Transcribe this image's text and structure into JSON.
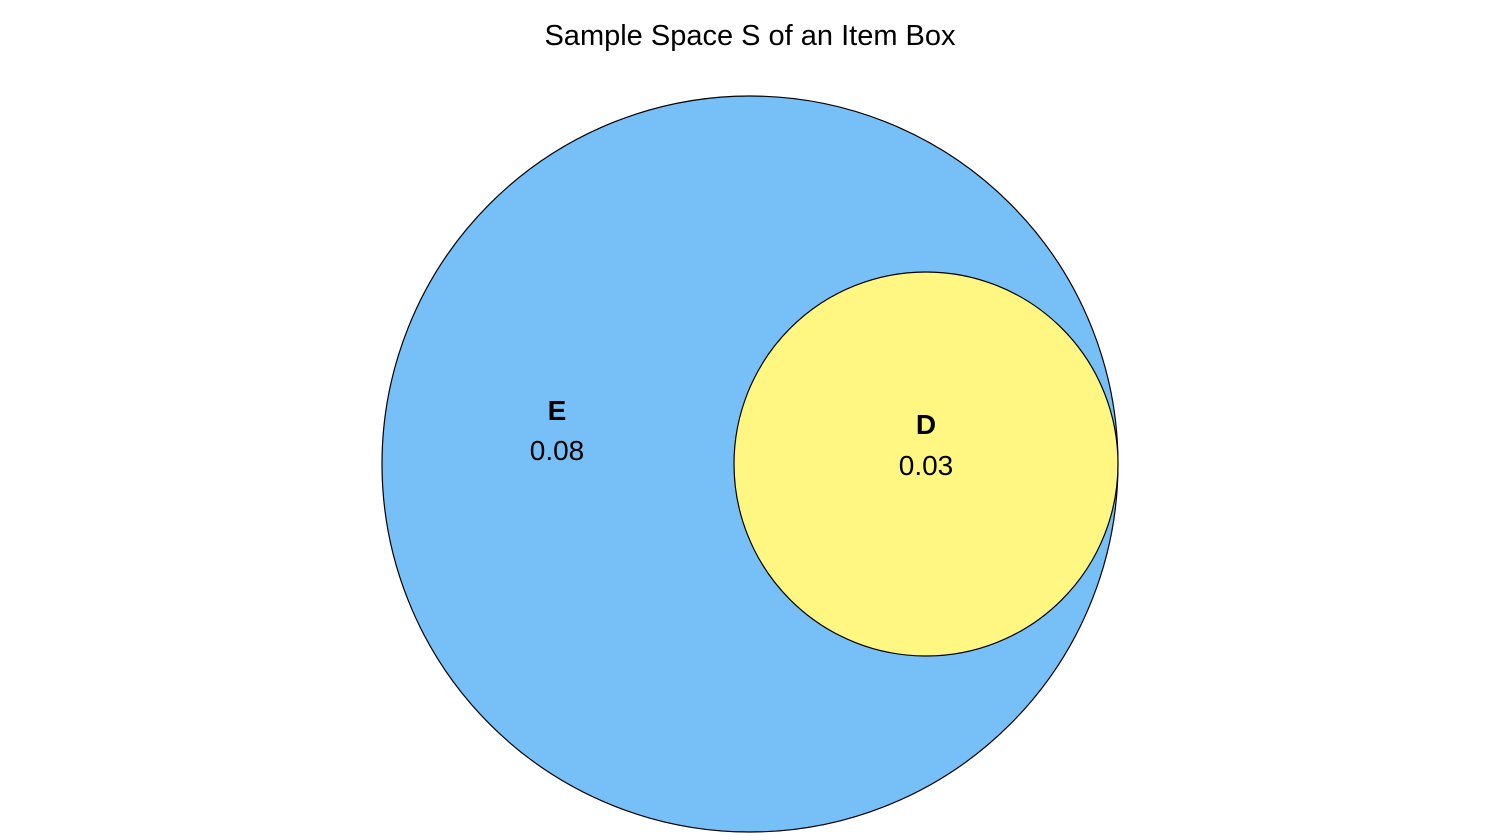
{
  "title": "Sample Space S of an Item Box",
  "sets": {
    "outer": {
      "name": "E",
      "value": "0.08",
      "fill": "#76c0f7",
      "stroke": "#000000"
    },
    "inner": {
      "name": "D",
      "value": "0.03",
      "fill": "#fff782",
      "stroke": "#000000"
    }
  },
  "relationship": "D is a subset of E"
}
